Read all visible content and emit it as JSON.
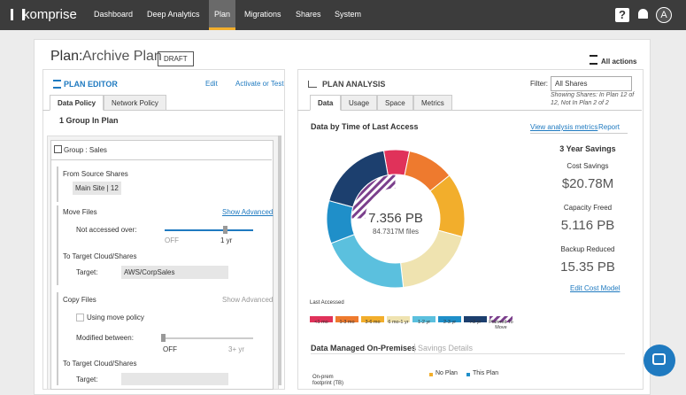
{
  "nav": {
    "brand": "komprise",
    "items": [
      "Dashboard",
      "Deep Analytics",
      "Plan",
      "Migrations",
      "Shares",
      "System"
    ],
    "active": 2,
    "help": "?",
    "avatar": "A"
  },
  "plan": {
    "title_prefix": "Plan:",
    "name": "Archive Plan",
    "status": "DRAFT",
    "actions": "All actions"
  },
  "editor": {
    "title": "PLAN EDITOR",
    "edit": "Edit",
    "activate": "Activate or Test",
    "tabs": [
      "Data Policy",
      "Network Policy"
    ],
    "active_tab": 0,
    "groups_count": "1 Group In Plan",
    "group": "Group : Sales",
    "source_label": "From Source Shares",
    "source_value": "Main Site | 12",
    "move": {
      "title": "Move Files",
      "advanced": "Show Advanced",
      "condition": "Not accessed over:",
      "slider_min": "OFF",
      "slider_value": "1 yr",
      "target_title": "To Target Cloud/Shares",
      "target_label": "Target:",
      "target_value": "AWS/CorpSales"
    },
    "copy": {
      "title": "Copy Files",
      "advanced": "Show Advanced",
      "use_move": "Using move policy",
      "condition": "Modified between:",
      "slider_min": "OFF",
      "slider_max": "3+ yr",
      "target_title": "To Target Cloud/Shares",
      "target_label": "Target:"
    }
  },
  "analysis": {
    "title": "PLAN ANALYSIS",
    "filter_label": "Filter:",
    "filter_value": "All Shares",
    "filter_note": "Showing Shares: In Plan 12 of 12, Not In Plan 2 of 2",
    "tabs": [
      "Data",
      "Usage",
      "Space",
      "Metrics"
    ],
    "active_tab": 0,
    "chart_title": "Data by Time of Last Access",
    "metrics_link": "View analysis metrics",
    "report_link": "Report",
    "total": "7.356 PB",
    "files": "84.7317M files",
    "savings": {
      "title": "3 Year Savings",
      "items": [
        {
          "label": "Cost Savings",
          "value": "$20.78M"
        },
        {
          "label": "Capacity Freed",
          "value": "5.116 PB"
        },
        {
          "label": "Backup Reduced",
          "value": "15.35 PB"
        }
      ],
      "edit": "Edit Cost Model"
    },
    "legend_title": "Last Accessed",
    "donut": {
      "segments": [
        {
          "name": "<1 mo",
          "color": "#e0325a",
          "value": 6
        },
        {
          "name": "1-3 mo",
          "color": "#ee7a2e",
          "value": 11
        },
        {
          "name": "3-6 mo",
          "color": "#f2ae2c",
          "value": 15
        },
        {
          "name": "6 mo-1 yr",
          "color": "#efe3b0",
          "value": 19
        },
        {
          "name": "1-2 yr",
          "color": "#5bc0de",
          "value": 21
        },
        {
          "name": "2-3 yr",
          "color": "#1f8fc9",
          "value": 10
        },
        {
          "name": ">3 yr",
          "color": "#1c3f6e",
          "value": 18
        }
      ],
      "planned": {
        "name": "Planned To Move",
        "color": "#7b3f8c",
        "value": 25
      }
    },
    "onprem_title": "Data Managed On-Premises",
    "savings_details": "Savings Details",
    "onprem_legend": [
      {
        "name": "No Plan",
        "color": "#f2ae2c"
      },
      {
        "name": "This Plan",
        "color": "#1f8fc9"
      }
    ],
    "onprem_axis": "On-prem footprint (TB)"
  }
}
